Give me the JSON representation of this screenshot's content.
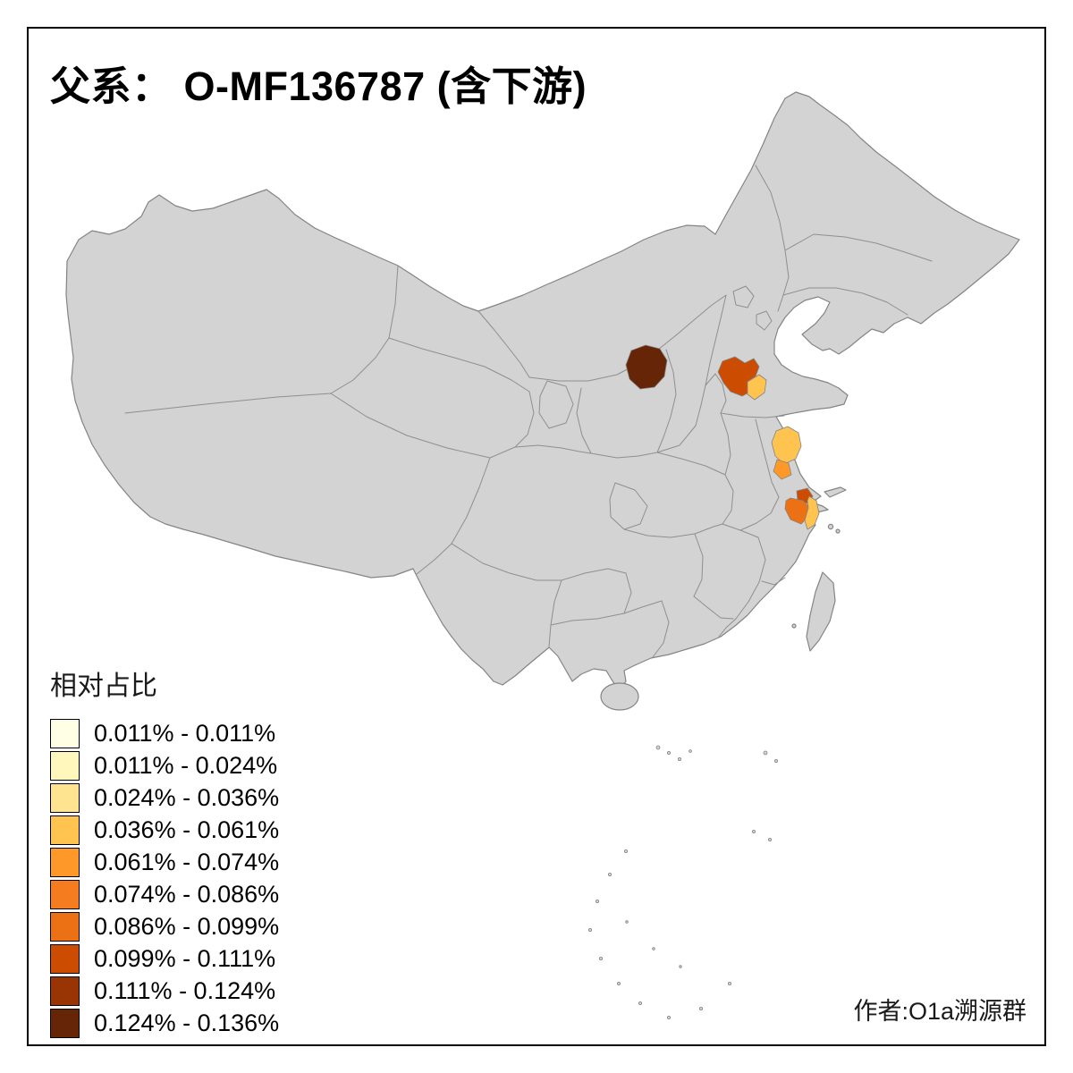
{
  "title": "父系： O-MF136787 (含下游)",
  "author": "作者:O1a溯源群",
  "legend": {
    "title": "相对占比",
    "classes": [
      {
        "label": "0.011% - 0.011%",
        "color": "#FFFFE5"
      },
      {
        "label": "0.011% - 0.024%",
        "color": "#FFF7BC"
      },
      {
        "label": "0.024% - 0.036%",
        "color": "#FEE391"
      },
      {
        "label": "0.036% - 0.061%",
        "color": "#FEC44F"
      },
      {
        "label": "0.061% - 0.074%",
        "color": "#FE9929"
      },
      {
        "label": "0.074% - 0.086%",
        "color": "#F57D20"
      },
      {
        "label": "0.086% - 0.099%",
        "color": "#EC7014"
      },
      {
        "label": "0.099% - 0.111%",
        "color": "#CC4C02"
      },
      {
        "label": "0.111% - 0.124%",
        "color": "#993404"
      },
      {
        "label": "0.124% - 0.136%",
        "color": "#662506"
      }
    ]
  },
  "map": {
    "base_fill": "#D3D3D3",
    "border_color": "#848484",
    "background": "#FFFFFF",
    "highlighted_regions": [
      {
        "name": "shaanxi-north-prefecture",
        "value_class": "0.124% - 0.136%",
        "color": "#662506"
      },
      {
        "name": "shandong-west-prefecture",
        "value_class": "0.099% - 0.111%",
        "color": "#CC4C02"
      },
      {
        "name": "shandong-central-prefecture",
        "value_class": "0.036% - 0.061%",
        "color": "#FEC44F"
      },
      {
        "name": "jiangsu-central-prefecture",
        "value_class": "0.036% - 0.061%",
        "color": "#FEC44F"
      },
      {
        "name": "jiangsu-south-prefecture",
        "value_class": "0.061% - 0.074%",
        "color": "#FE9929"
      },
      {
        "name": "shanghai-area-prefecture",
        "value_class": "0.099% - 0.111%",
        "color": "#CC4C02"
      },
      {
        "name": "zhejiang-north-prefecture",
        "value_class": "0.086% - 0.099%",
        "color": "#EC7014"
      },
      {
        "name": "coastal-strip-prefecture",
        "value_class": "0.036% - 0.061%",
        "color": "#FEC44F"
      }
    ]
  },
  "chart_data": {
    "type": "choropleth-map",
    "title": "父系： O-MF136787 (含下游)",
    "legend_title": "相对占比",
    "classes": [
      "0.011% - 0.011%",
      "0.011% - 0.024%",
      "0.024% - 0.036%",
      "0.036% - 0.061%",
      "0.061% - 0.074%",
      "0.074% - 0.086%",
      "0.086% - 0.099%",
      "0.099% - 0.111%",
      "0.111% - 0.124%",
      "0.124% - 0.136%"
    ],
    "palette": [
      "#FFFFE5",
      "#FFF7BC",
      "#FEE391",
      "#FEC44F",
      "#FE9929",
      "#F57D20",
      "#EC7014",
      "#CC4C02",
      "#993404",
      "#662506"
    ],
    "regions_with_data": [
      {
        "region": "shaanxi-north-prefecture",
        "class": "0.124% - 0.136%"
      },
      {
        "region": "shandong-west-prefecture",
        "class": "0.099% - 0.111%"
      },
      {
        "region": "shandong-central-prefecture",
        "class": "0.036% - 0.061%"
      },
      {
        "region": "jiangsu-central-prefecture",
        "class": "0.036% - 0.061%"
      },
      {
        "region": "jiangsu-south-prefecture",
        "class": "0.061% - 0.074%"
      },
      {
        "region": "shanghai-area-prefecture",
        "class": "0.099% - 0.111%"
      },
      {
        "region": "zhejiang-north-prefecture",
        "class": "0.086% - 0.099%"
      },
      {
        "region": "coastal-strip-prefecture",
        "class": "0.036% - 0.061%"
      }
    ],
    "note": "All other provinces shown in neutral gray (no data)"
  }
}
